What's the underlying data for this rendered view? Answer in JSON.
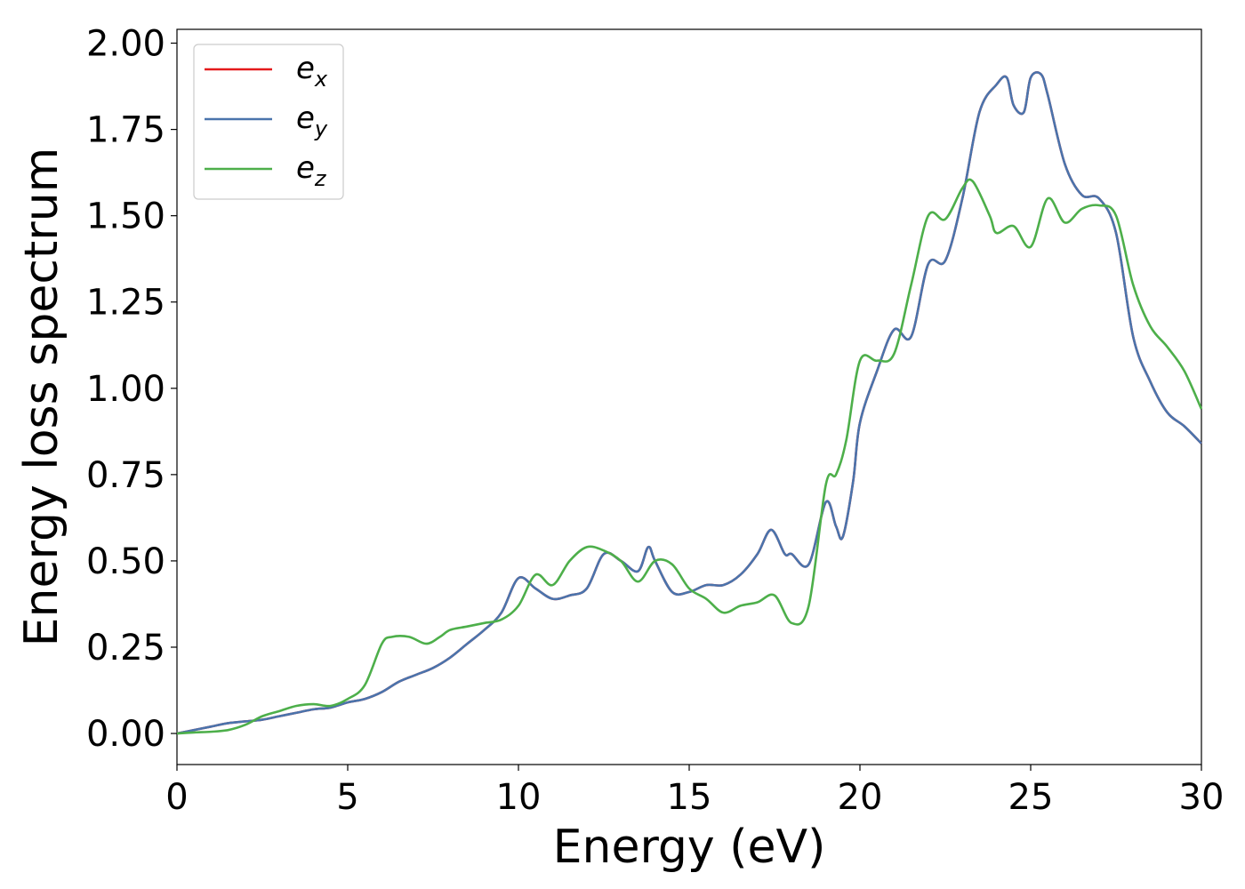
{
  "chart_data": {
    "type": "line",
    "title": "",
    "xlabel": "Energy (eV)",
    "ylabel": "Energy loss spectrum",
    "xlim": [
      0,
      30
    ],
    "ylim": [
      -0.09,
      2.04
    ],
    "xticks": [
      0,
      5,
      10,
      15,
      20,
      25,
      30
    ],
    "xtick_labels": [
      "0",
      "5",
      "10",
      "15",
      "20",
      "25",
      "30"
    ],
    "yticks": [
      0.0,
      0.25,
      0.5,
      0.75,
      1.0,
      1.25,
      1.5,
      1.75,
      2.0
    ],
    "ytick_labels": [
      "0.00",
      "0.25",
      "0.50",
      "0.75",
      "1.00",
      "1.25",
      "1.50",
      "1.75",
      "2.00"
    ],
    "grid": false,
    "legend_position": "top-left",
    "series": [
      {
        "name": "e",
        "subscript": "x",
        "color": "#e41a1c",
        "x": [
          0,
          0.5,
          1,
          1.5,
          2,
          2.5,
          3,
          3.5,
          4,
          4.5,
          5,
          5.5,
          6,
          6.5,
          7,
          7.5,
          8,
          8.5,
          9,
          9.5,
          10,
          10.5,
          11,
          11.5,
          12,
          12.5,
          13,
          13.5,
          13.8,
          14,
          14.5,
          15,
          15.5,
          16,
          16.5,
          17,
          17.4,
          17.8,
          18,
          18.5,
          19,
          19.3,
          19.5,
          19.8,
          20,
          20.5,
          21,
          21.5,
          22,
          22.5,
          23,
          23.5,
          24,
          24.3,
          24.5,
          24.8,
          25,
          25.3,
          25.5,
          26,
          26.5,
          27,
          27.5,
          28,
          28.5,
          29,
          29.5,
          30
        ],
        "values": [
          0,
          0.01,
          0.02,
          0.03,
          0.035,
          0.04,
          0.05,
          0.06,
          0.07,
          0.075,
          0.09,
          0.1,
          0.12,
          0.15,
          0.17,
          0.19,
          0.22,
          0.26,
          0.3,
          0.35,
          0.45,
          0.42,
          0.39,
          0.4,
          0.42,
          0.52,
          0.5,
          0.47,
          0.54,
          0.5,
          0.41,
          0.41,
          0.43,
          0.43,
          0.46,
          0.52,
          0.59,
          0.52,
          0.52,
          0.49,
          0.67,
          0.6,
          0.57,
          0.73,
          0.9,
          1.05,
          1.17,
          1.15,
          1.36,
          1.37,
          1.55,
          1.8,
          1.88,
          1.9,
          1.82,
          1.8,
          1.9,
          1.91,
          1.85,
          1.65,
          1.56,
          1.55,
          1.45,
          1.15,
          1.02,
          0.93,
          0.89,
          0.84
        ]
      },
      {
        "name": "e",
        "subscript": "y",
        "color": "#4a74ac",
        "x": [
          0,
          0.5,
          1,
          1.5,
          2,
          2.5,
          3,
          3.5,
          4,
          4.5,
          5,
          5.5,
          6,
          6.5,
          7,
          7.5,
          8,
          8.5,
          9,
          9.5,
          10,
          10.5,
          11,
          11.5,
          12,
          12.5,
          13,
          13.5,
          13.8,
          14,
          14.5,
          15,
          15.5,
          16,
          16.5,
          17,
          17.4,
          17.8,
          18,
          18.5,
          19,
          19.3,
          19.5,
          19.8,
          20,
          20.5,
          21,
          21.5,
          22,
          22.5,
          23,
          23.5,
          24,
          24.3,
          24.5,
          24.8,
          25,
          25.3,
          25.5,
          26,
          26.5,
          27,
          27.5,
          28,
          28.5,
          29,
          29.5,
          30
        ],
        "values": [
          0,
          0.01,
          0.02,
          0.03,
          0.035,
          0.04,
          0.05,
          0.06,
          0.07,
          0.075,
          0.09,
          0.1,
          0.12,
          0.15,
          0.17,
          0.19,
          0.22,
          0.26,
          0.3,
          0.35,
          0.45,
          0.42,
          0.39,
          0.4,
          0.42,
          0.52,
          0.5,
          0.47,
          0.54,
          0.5,
          0.41,
          0.41,
          0.43,
          0.43,
          0.46,
          0.52,
          0.59,
          0.52,
          0.52,
          0.49,
          0.67,
          0.6,
          0.57,
          0.73,
          0.9,
          1.05,
          1.17,
          1.15,
          1.36,
          1.37,
          1.55,
          1.8,
          1.88,
          1.9,
          1.82,
          1.8,
          1.9,
          1.91,
          1.85,
          1.65,
          1.56,
          1.55,
          1.45,
          1.15,
          1.02,
          0.93,
          0.89,
          0.84
        ]
      },
      {
        "name": "e",
        "subscript": "z",
        "color": "#4daf4a",
        "x": [
          0,
          0.5,
          1,
          1.5,
          2,
          2.5,
          3,
          3.5,
          4,
          4.5,
          5,
          5.5,
          6,
          6.3,
          6.8,
          7.3,
          7.7,
          8,
          8.5,
          9,
          9.5,
          10,
          10.5,
          11,
          11.5,
          12,
          12.5,
          13,
          13.5,
          14,
          14.5,
          15,
          15.5,
          16,
          16.5,
          17,
          17.5,
          18,
          18.5,
          19,
          19.3,
          19.6,
          20,
          20.5,
          21,
          21.5,
          22,
          22.5,
          23,
          23.3,
          23.8,
          24,
          24.5,
          25,
          25.5,
          26,
          26.5,
          27,
          27.5,
          28,
          28.5,
          29,
          29.5,
          30
        ],
        "values": [
          0,
          0.003,
          0.005,
          0.01,
          0.025,
          0.05,
          0.065,
          0.08,
          0.085,
          0.08,
          0.1,
          0.14,
          0.26,
          0.28,
          0.28,
          0.26,
          0.28,
          0.3,
          0.31,
          0.32,
          0.33,
          0.37,
          0.46,
          0.43,
          0.5,
          0.54,
          0.53,
          0.5,
          0.44,
          0.5,
          0.49,
          0.42,
          0.39,
          0.35,
          0.37,
          0.38,
          0.4,
          0.32,
          0.37,
          0.72,
          0.75,
          0.85,
          1.08,
          1.08,
          1.1,
          1.3,
          1.5,
          1.49,
          1.58,
          1.6,
          1.5,
          1.45,
          1.47,
          1.41,
          1.55,
          1.48,
          1.52,
          1.53,
          1.5,
          1.3,
          1.18,
          1.12,
          1.05,
          0.94
        ]
      }
    ]
  }
}
